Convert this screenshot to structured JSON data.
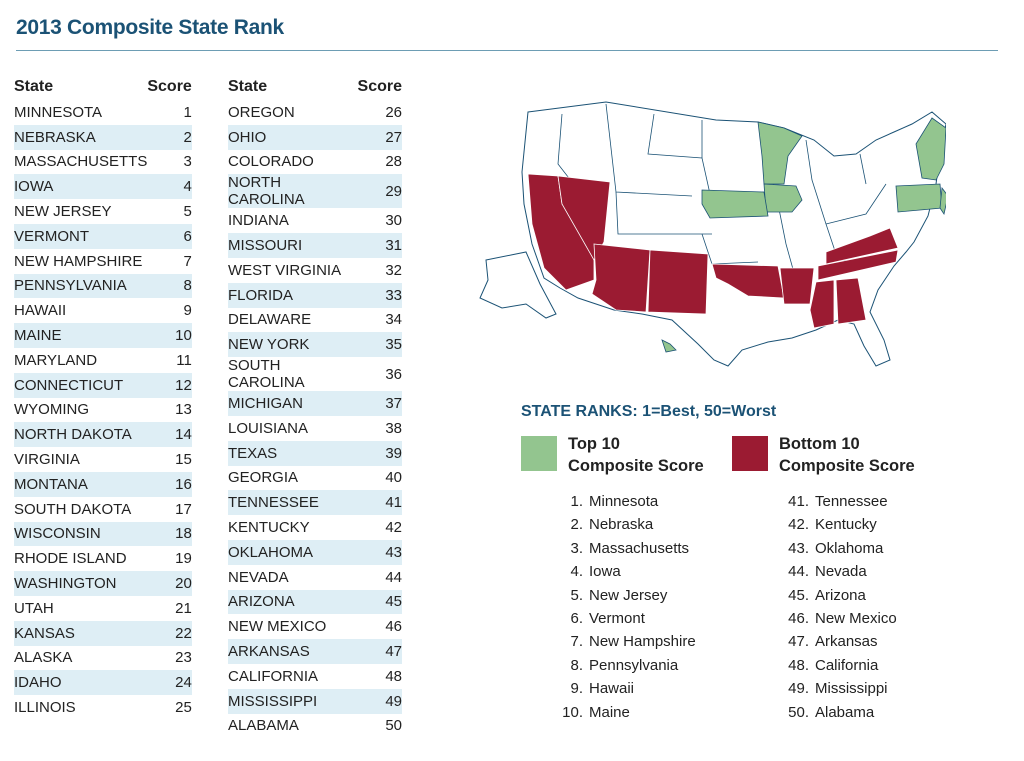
{
  "title": "2013 Composite State Rank",
  "table": {
    "state_header": "State",
    "score_header": "Score",
    "rows": [
      {
        "state": "MINNESOTA",
        "score": 1
      },
      {
        "state": "NEBRASKA",
        "score": 2
      },
      {
        "state": "MASSACHUSETTS",
        "score": 3
      },
      {
        "state": "IOWA",
        "score": 4
      },
      {
        "state": "NEW JERSEY",
        "score": 5
      },
      {
        "state": "VERMONT",
        "score": 6
      },
      {
        "state": "NEW HAMPSHIRE",
        "score": 7
      },
      {
        "state": "PENNSYLVANIA",
        "score": 8
      },
      {
        "state": "HAWAII",
        "score": 9
      },
      {
        "state": "MAINE",
        "score": 10
      },
      {
        "state": "MARYLAND",
        "score": 11
      },
      {
        "state": "CONNECTICUT",
        "score": 12
      },
      {
        "state": "WYOMING",
        "score": 13
      },
      {
        "state": "NORTH DAKOTA",
        "score": 14
      },
      {
        "state": "VIRGINIA",
        "score": 15
      },
      {
        "state": "MONTANA",
        "score": 16
      },
      {
        "state": "SOUTH DAKOTA",
        "score": 17
      },
      {
        "state": "WISCONSIN",
        "score": 18
      },
      {
        "state": "RHODE ISLAND",
        "score": 19
      },
      {
        "state": "WASHINGTON",
        "score": 20
      },
      {
        "state": "UTAH",
        "score": 21
      },
      {
        "state": "KANSAS",
        "score": 22
      },
      {
        "state": "ALASKA",
        "score": 23
      },
      {
        "state": "IDAHO",
        "score": 24
      },
      {
        "state": "ILLINOIS",
        "score": 25
      },
      {
        "state": "OREGON",
        "score": 26
      },
      {
        "state": "OHIO",
        "score": 27
      },
      {
        "state": "COLORADO",
        "score": 28
      },
      {
        "state": "NORTH CAROLINA",
        "score": 29
      },
      {
        "state": "INDIANA",
        "score": 30
      },
      {
        "state": "MISSOURI",
        "score": 31
      },
      {
        "state": "WEST VIRGINIA",
        "score": 32
      },
      {
        "state": "FLORIDA",
        "score": 33
      },
      {
        "state": "DELAWARE",
        "score": 34
      },
      {
        "state": "NEW YORK",
        "score": 35
      },
      {
        "state": "SOUTH CAROLINA",
        "score": 36
      },
      {
        "state": "MICHIGAN",
        "score": 37
      },
      {
        "state": "LOUISIANA",
        "score": 38
      },
      {
        "state": "TEXAS",
        "score": 39
      },
      {
        "state": "GEORGIA",
        "score": 40
      },
      {
        "state": "TENNESSEE",
        "score": 41
      },
      {
        "state": "KENTUCKY",
        "score": 42
      },
      {
        "state": "OKLAHOMA",
        "score": 43
      },
      {
        "state": "NEVADA",
        "score": 44
      },
      {
        "state": "ARIZONA",
        "score": 45
      },
      {
        "state": "NEW MEXICO",
        "score": 46
      },
      {
        "state": "ARKANSAS",
        "score": 47
      },
      {
        "state": "CALIFORNIA",
        "score": 48
      },
      {
        "state": "MISSISSIPPI",
        "score": 49
      },
      {
        "state": "ALABAMA",
        "score": 50
      }
    ]
  },
  "colors": {
    "title": "#1b5275",
    "stripe": "#deeef5",
    "top10": "#93c58f",
    "bottom10": "#9b1b32",
    "outline": "#1b5275"
  },
  "map": {
    "top10_states": [
      "Minnesota",
      "Nebraska",
      "Massachusetts",
      "Iowa",
      "New Jersey",
      "Vermont",
      "New Hampshire",
      "Pennsylvania",
      "Hawaii",
      "Maine"
    ],
    "bottom10_states": [
      "Tennessee",
      "Kentucky",
      "Oklahoma",
      "Nevada",
      "Arizona",
      "New Mexico",
      "Arkansas",
      "California",
      "Mississippi",
      "Alabama"
    ]
  },
  "legend": {
    "heading": "STATE RANKS: 1=Best, 50=Worst",
    "top_label_line1": "Top 10",
    "top_label_line2": "Composite Score",
    "bottom_label_line1": "Bottom 10",
    "bottom_label_line2": "Composite Score"
  },
  "top10_list": [
    {
      "rank": "1.",
      "name": "Minnesota"
    },
    {
      "rank": "2.",
      "name": "Nebraska"
    },
    {
      "rank": "3.",
      "name": "Massachusetts"
    },
    {
      "rank": "4.",
      "name": "Iowa"
    },
    {
      "rank": "5.",
      "name": "New Jersey"
    },
    {
      "rank": "6.",
      "name": "Vermont"
    },
    {
      "rank": "7.",
      "name": "New Hampshire"
    },
    {
      "rank": "8.",
      "name": "Pennsylvania"
    },
    {
      "rank": "9.",
      "name": "Hawaii"
    },
    {
      "rank": "10.",
      "name": "Maine"
    }
  ],
  "bottom10_list": [
    {
      "rank": "41.",
      "name": "Tennessee"
    },
    {
      "rank": "42.",
      "name": "Kentucky"
    },
    {
      "rank": "43.",
      "name": "Oklahoma"
    },
    {
      "rank": "44.",
      "name": "Nevada"
    },
    {
      "rank": "45.",
      "name": "Arizona"
    },
    {
      "rank": "46.",
      "name": "New Mexico"
    },
    {
      "rank": "47.",
      "name": "Arkansas"
    },
    {
      "rank": "48.",
      "name": "California"
    },
    {
      "rank": "49.",
      "name": "Mississippi"
    },
    {
      "rank": "50.",
      "name": "Alabama"
    }
  ]
}
